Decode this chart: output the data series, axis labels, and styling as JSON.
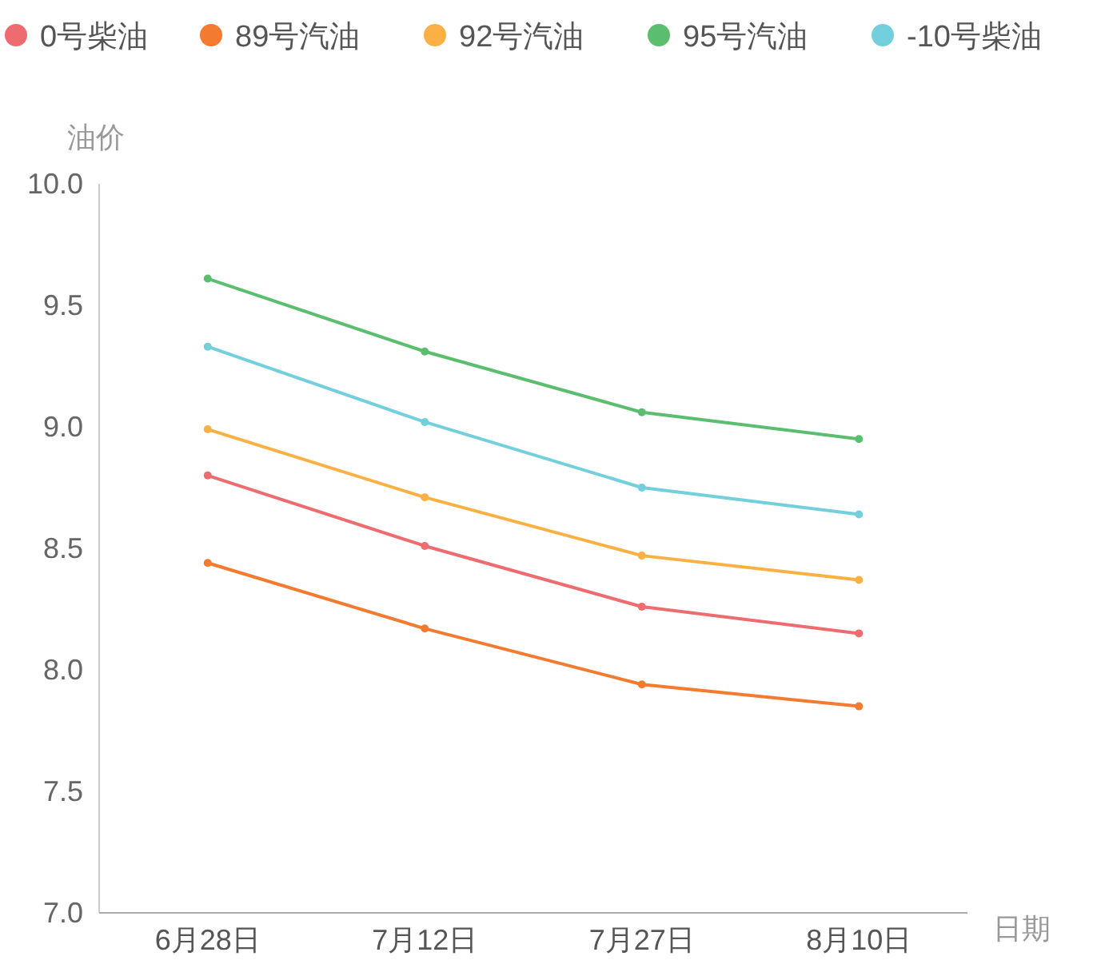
{
  "chart_data": {
    "type": "line",
    "xlabel": "日期",
    "ylabel": "油价",
    "categories": [
      "6月28日",
      "7月12日",
      "7月27日",
      "8月10日"
    ],
    "series": [
      {
        "name": "0号柴油",
        "color": "#ee6b6f",
        "values": [
          8.8,
          8.51,
          8.26,
          8.15
        ]
      },
      {
        "name": "89号汽油",
        "color": "#f47a30",
        "values": [
          8.44,
          8.17,
          7.94,
          7.85
        ]
      },
      {
        "name": "92号汽油",
        "color": "#fbb044",
        "values": [
          8.99,
          8.71,
          8.47,
          8.37
        ]
      },
      {
        "name": "95号汽油",
        "color": "#5bbd6e",
        "values": [
          9.61,
          9.31,
          9.06,
          8.95
        ]
      },
      {
        "name": "-10号柴油",
        "color": "#73cfdc",
        "values": [
          9.33,
          9.02,
          8.75,
          8.64
        ]
      }
    ],
    "ylim": [
      7.0,
      10.0
    ],
    "yticks": [
      {
        "value": 7.0,
        "label": "7.0"
      },
      {
        "value": 7.5,
        "label": "7.5"
      },
      {
        "value": 8.0,
        "label": "8.0"
      },
      {
        "value": 8.5,
        "label": "8.5"
      },
      {
        "value": 9.0,
        "label": "9.0"
      },
      {
        "value": 9.5,
        "label": "9.5"
      },
      {
        "value": 10.0,
        "label": "10.0"
      }
    ],
    "grid": false,
    "legend": "top",
    "marker": "circle",
    "line_style": "solid"
  }
}
